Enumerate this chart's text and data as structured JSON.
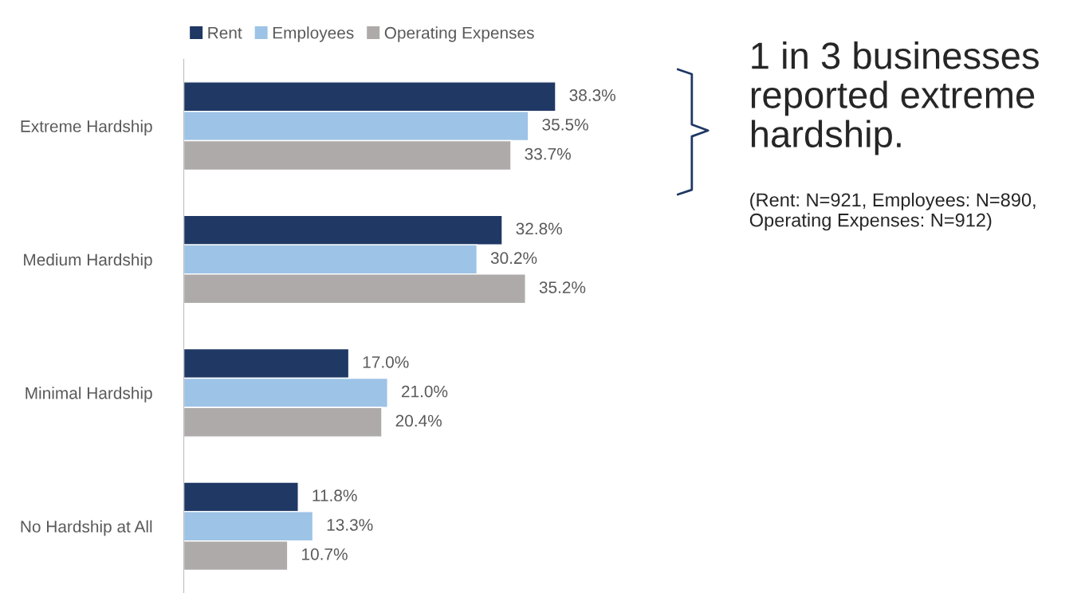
{
  "chart_data": {
    "type": "bar",
    "orientation": "horizontal",
    "relative": false,
    "categories": [
      "Extreme Hardship",
      "Medium Hardship",
      "Minimal Hardship",
      "No Hardship at All"
    ],
    "series": [
      {
        "name": "Rent",
        "color": "#1f3864",
        "values": [
          38.3,
          32.8,
          17.0,
          11.8
        ],
        "value_labels": [
          "38.3%",
          "32.8%",
          "17.0%",
          "11.8%"
        ]
      },
      {
        "name": "Employees",
        "color": "#9dc3e6",
        "values": [
          35.5,
          30.2,
          21.0,
          13.3
        ],
        "value_labels": [
          "35.5%",
          "30.2%",
          "21.0%",
          "13.3%"
        ]
      },
      {
        "name": "Operating Expenses",
        "color": "#aeaaaa",
        "values": [
          33.7,
          35.2,
          20.4,
          10.7
        ],
        "value_labels": [
          "33.7%",
          "35.2%",
          "20.4%",
          "10.7%"
        ]
      }
    ],
    "legend": "top",
    "grid": false,
    "annotations": [
      "1 in 3 businesses reported extreme hardship.",
      "(Rent: N=921, Employees: N=890, Operating Expenses: N=912)"
    ]
  }
}
